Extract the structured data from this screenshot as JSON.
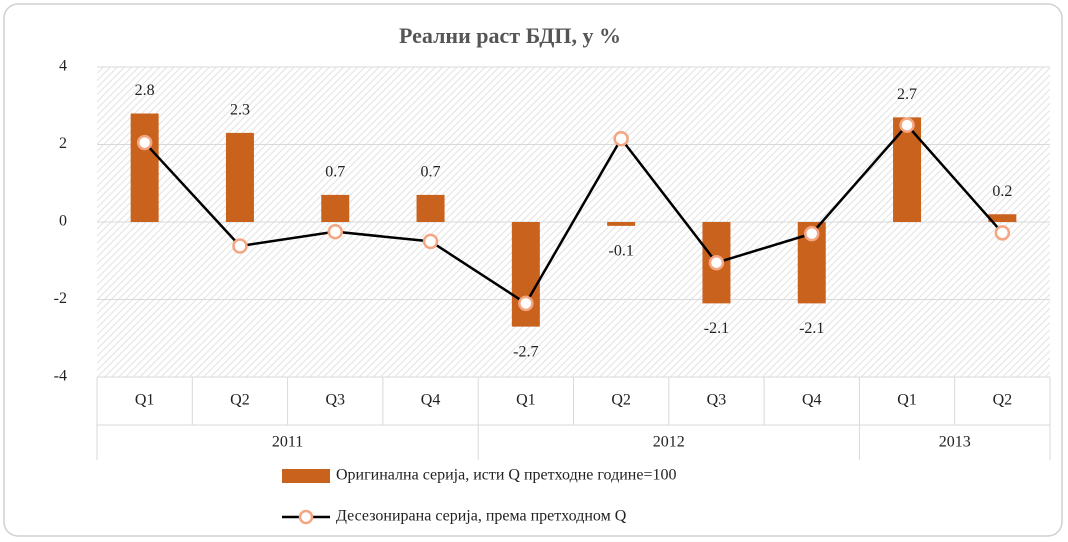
{
  "chart_data": {
    "type": "bar_line",
    "title": "Реални раст БДП, у %",
    "categories": [
      "Q1",
      "Q2",
      "Q3",
      "Q4",
      "Q1",
      "Q2",
      "Q3",
      "Q4",
      "Q1",
      "Q2"
    ],
    "category_groups": [
      "2011",
      "2011",
      "2011",
      "2011",
      "2012",
      "2012",
      "2012",
      "2012",
      "2013",
      "2013"
    ],
    "series": [
      {
        "name": "Оригинална серија, исти Q претходне године=100",
        "type": "bar",
        "color": "#c9621d",
        "values": [
          2.8,
          2.3,
          0.7,
          0.7,
          -2.7,
          -0.1,
          -2.1,
          -2.1,
          2.7,
          0.2
        ]
      },
      {
        "name": "Десезонирана серија, према претходном Q",
        "type": "line",
        "color": "#000000",
        "marker_color": "#f4a582",
        "values": [
          2.05,
          -0.62,
          -0.25,
          -0.5,
          -2.1,
          2.15,
          -1.05,
          -0.3,
          2.5,
          -0.28
        ]
      }
    ],
    "ylim": [
      -4,
      4
    ],
    "yticks": [
      4,
      2,
      0,
      -2,
      -4
    ],
    "grid": true
  }
}
